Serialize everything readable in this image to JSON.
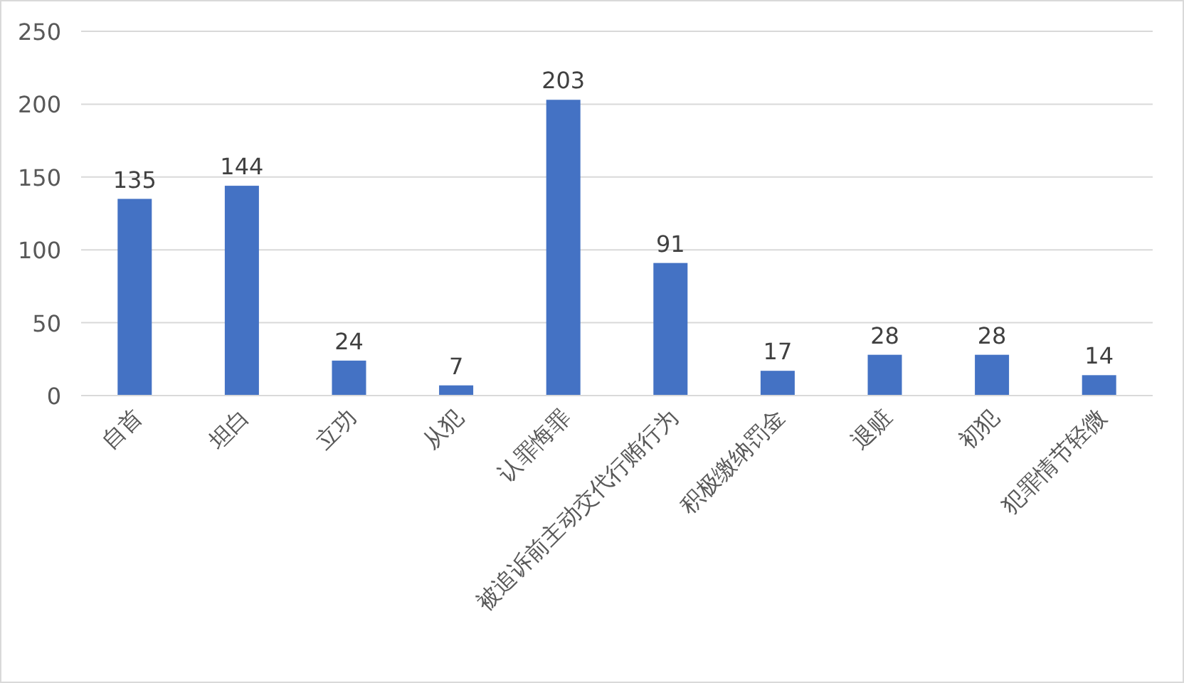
{
  "chart_data": {
    "type": "bar",
    "categories": [
      "自首",
      "坦白",
      "立功",
      "从犯",
      "认罪悔罪",
      "被追诉前主动交代行贿行为",
      "积极缴纳罚金",
      "退赃",
      "初犯",
      "犯罪情节轻微"
    ],
    "values": [
      135,
      144,
      24,
      7,
      203,
      91,
      17,
      28,
      28,
      14
    ],
    "color": "#4472c4",
    "ylim": [
      0,
      250
    ],
    "yticks": [
      0,
      50,
      100,
      150,
      200,
      250
    ],
    "grid": "y",
    "data_labels": true
  }
}
